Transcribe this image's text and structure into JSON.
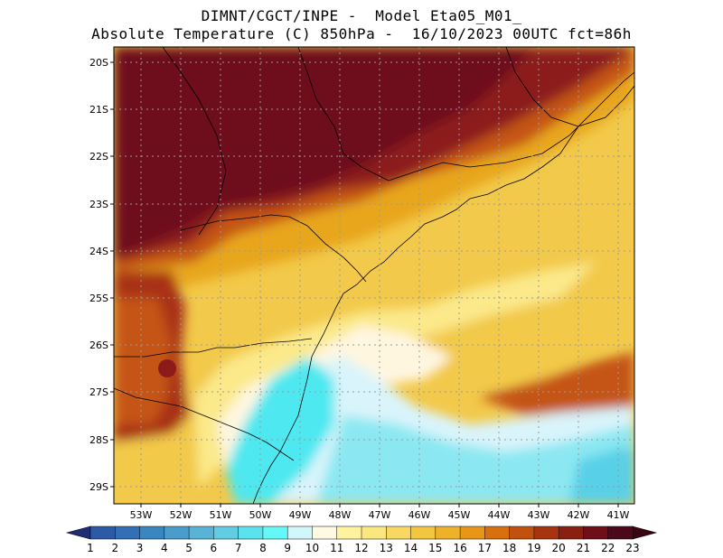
{
  "header": {
    "line1": "DIMNT/CGCT/INPE -  Model Eta05_M01_",
    "line2": "Absolute Temperature (C) 850hPa -  16/10/2023 00UTC fct=86h"
  },
  "map": {
    "lat_labels": [
      "20S",
      "21S",
      "22S",
      "23S",
      "24S",
      "25S",
      "26S",
      "27S",
      "28S",
      "29S"
    ],
    "lon_labels": [
      "53W",
      "52W",
      "51W",
      "50W",
      "49W",
      "48W",
      "47W",
      "46W",
      "45W",
      "44W",
      "43W",
      "42W",
      "41W"
    ],
    "colors": {
      "c22": "#6e0a1e",
      "c21": "#8c1a1a",
      "c20": "#a83216",
      "c19": "#c45414",
      "c17": "#e8a61e",
      "c15": "#f2c94a",
      "c13": "#fbe98a",
      "c11": "#fff6e0",
      "c10": "#d9f4fb",
      "c9": "#8be8f2",
      "c8": "#4de8f0",
      "c7": "#59d0e8"
    }
  },
  "colorbar": {
    "labels": [
      "1",
      "2",
      "3",
      "4",
      "5",
      "6",
      "7",
      "8",
      "9",
      "10",
      "11",
      "12",
      "13",
      "14",
      "15",
      "16",
      "17",
      "18",
      "19",
      "20",
      "21",
      "22",
      "23"
    ],
    "colors": [
      "#2b3f8c",
      "#2d5aa5",
      "#336fb4",
      "#3a86c0",
      "#4a9ccb",
      "#58b3d6",
      "#62cce2",
      "#5ae3ec",
      "#66f7f7",
      "#d2f7fb",
      "#fff8e3",
      "#fff3a0",
      "#fce680",
      "#f8d862",
      "#f3c641",
      "#eeb12a",
      "#e89618",
      "#d9700f",
      "#c2500e",
      "#a5340f",
      "#892011",
      "#6e0f19",
      "#4a0a1a"
    ],
    "end_low": "#1f2d77",
    "end_high": "#3b0512"
  }
}
